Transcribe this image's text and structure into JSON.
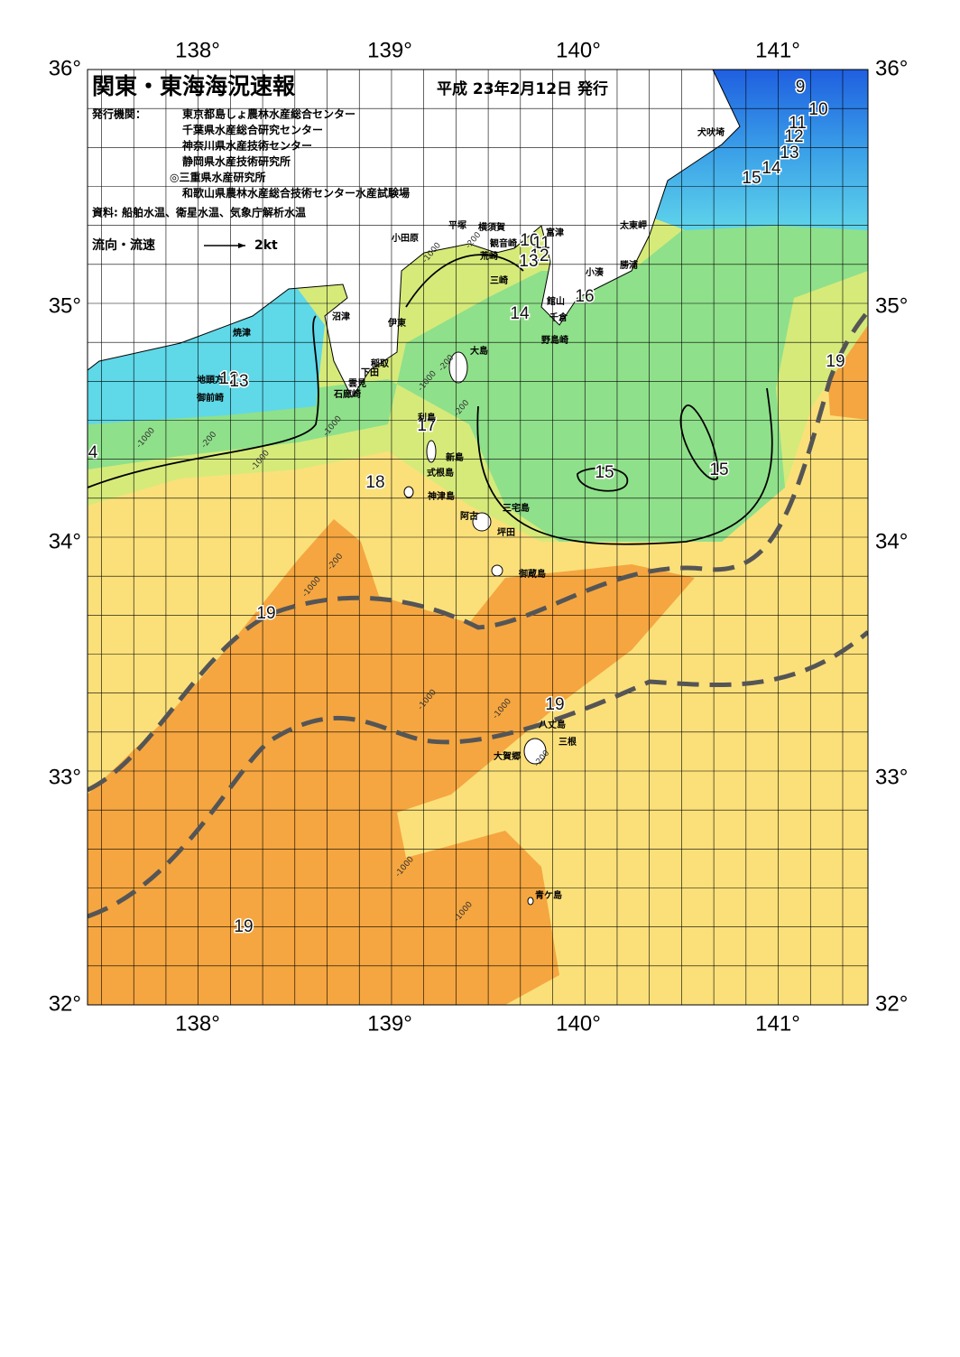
{
  "header": {
    "title": "関東・東海海況速報",
    "date": "平成 23年2月12日 発行"
  },
  "publisher": {
    "label": "発行機関：",
    "organizations": [
      "東京都島しょ農林水産総合センター",
      "千葉県水産総合研究センター",
      "神奈川県水産技術センター",
      "静岡県水産技術研究所",
      "◎三重県水産研究所",
      "和歌山県農林水産総合技術センター水産試験場"
    ]
  },
  "source": "資料: 船舶水温、衛星水温、気象庁解析水温",
  "legend": {
    "label": "流向・流速",
    "scale": "2kt"
  },
  "axes": {
    "top": [
      "138°",
      "139°",
      "140°",
      "141°"
    ],
    "bottom": [
      "138°",
      "139°",
      "140°",
      "141°"
    ],
    "left": [
      "36°",
      "35°",
      "34°",
      "33°",
      "32°"
    ],
    "right": [
      "36°",
      "35°",
      "34°",
      "33°",
      "32°"
    ]
  },
  "place_names": [
    "犬吠埼",
    "太東岬",
    "勝浦",
    "小湊",
    "館山",
    "千倉",
    "野島崎",
    "富津",
    "観音崎",
    "横須賀",
    "平塚",
    "小田原",
    "荒崎",
    "三崎",
    "沼津",
    "伊東",
    "焼津",
    "稲取",
    "下田",
    "雲見",
    "石廊崎",
    "地頭方",
    "御前崎",
    "大島",
    "利島",
    "新島",
    "式根島",
    "神津島",
    "三宅島",
    "阿古",
    "坪田",
    "御蔵島",
    "八丈島",
    "三根",
    "大賀郷",
    "青ケ島"
  ],
  "isotherm_labels": [
    9,
    10,
    11,
    12,
    13,
    14,
    15,
    10,
    11,
    12,
    13,
    16,
    14,
    12,
    13,
    17,
    18,
    15,
    15,
    19,
    19,
    19,
    19,
    4
  ],
  "depth_labels": [
    "-200",
    "-1000",
    "-200",
    "-1000",
    "-200",
    "-1000",
    "-200",
    "-1000",
    "-1000",
    "-200",
    "-1000",
    "-1000",
    "-1000",
    "-1000",
    "-200",
    "-1000"
  ]
}
